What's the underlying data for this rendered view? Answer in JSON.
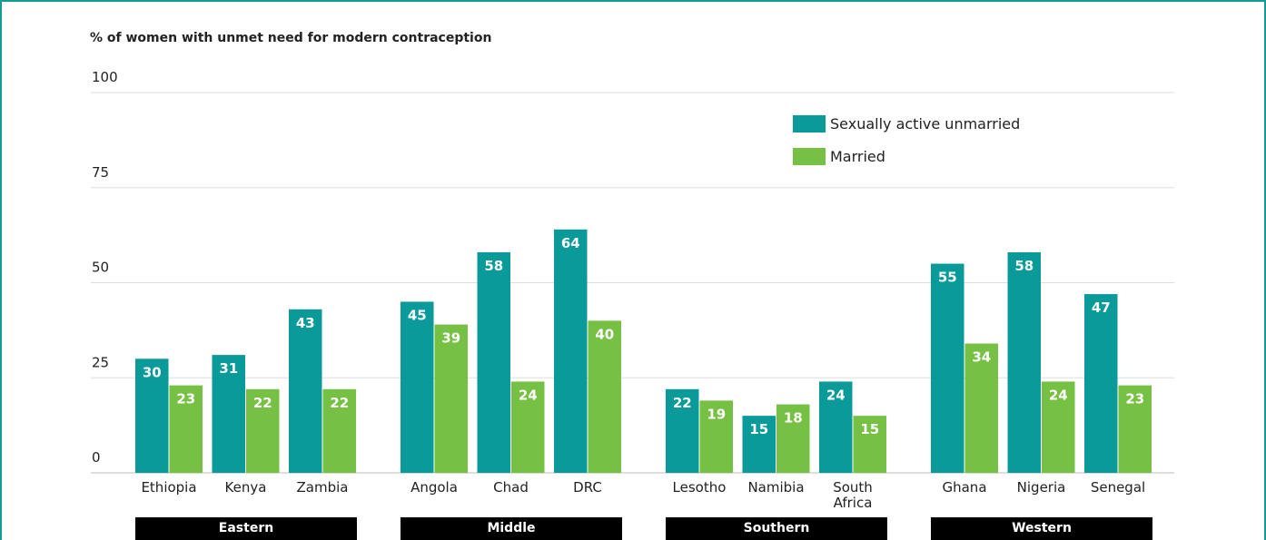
{
  "chart_data": {
    "type": "bar",
    "title": "% of women with unmet need for modern contraception",
    "groups": [
      {
        "name": "Eastern",
        "categories": [
          "Ethiopia",
          "Kenya",
          "Zambia"
        ]
      },
      {
        "name": "Middle",
        "categories": [
          "Angola",
          "Chad",
          "DRC"
        ]
      },
      {
        "name": "Southern",
        "categories": [
          "Lesotho",
          "Namibia",
          "South Africa"
        ]
      },
      {
        "name": "Western",
        "categories": [
          "Ghana",
          "Nigeria",
          "Senegal"
        ]
      }
    ],
    "series": [
      {
        "name": "Sexually active unmarried",
        "color": "#0a9a9a",
        "values": [
          30,
          31,
          43,
          45,
          58,
          64,
          22,
          15,
          24,
          55,
          58,
          47
        ]
      },
      {
        "name": "Married",
        "color": "#76c043",
        "values": [
          23,
          22,
          22,
          39,
          24,
          40,
          19,
          18,
          15,
          34,
          24,
          23
        ]
      }
    ],
    "ylim": [
      0,
      100
    ],
    "yticks": [
      0,
      25,
      50,
      75,
      100
    ],
    "grid": true
  }
}
